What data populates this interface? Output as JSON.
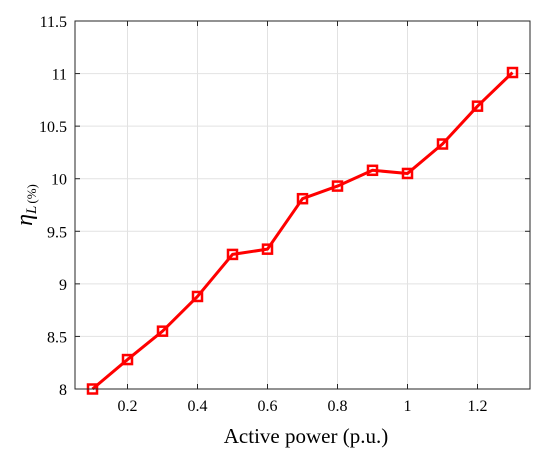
{
  "chart_data": {
    "type": "line",
    "title": "",
    "xlabel": "Active power (p.u.)",
    "ylabel": {
      "symbol": "η",
      "subscript": "L",
      "unit": "(%)"
    },
    "xlim": [
      0.05,
      1.35
    ],
    "ylim": [
      8,
      11.5
    ],
    "xticks": [
      0.2,
      0.4,
      0.6,
      0.8,
      1.0,
      1.2
    ],
    "xtick_labels": [
      "0.2",
      "0.4",
      "0.6",
      "0.8",
      "1",
      "1.2"
    ],
    "yticks": [
      8,
      8.5,
      9,
      9.5,
      10,
      10.5,
      11,
      11.5
    ],
    "ytick_labels": [
      "8",
      "8.5",
      "9",
      "9.5",
      "10",
      "10.5",
      "11",
      "11.5"
    ],
    "grid": true,
    "legend": "none",
    "series": [
      {
        "color": "#ff0000",
        "marker": "square",
        "x": [
          0.1,
          0.2,
          0.3,
          0.4,
          0.5,
          0.6,
          0.7,
          0.8,
          0.9,
          1.0,
          1.1,
          1.2,
          1.3
        ],
        "y": [
          8.0,
          8.28,
          8.55,
          8.88,
          9.28,
          9.33,
          9.81,
          9.93,
          10.08,
          10.05,
          10.33,
          10.69,
          11.01
        ]
      }
    ]
  }
}
